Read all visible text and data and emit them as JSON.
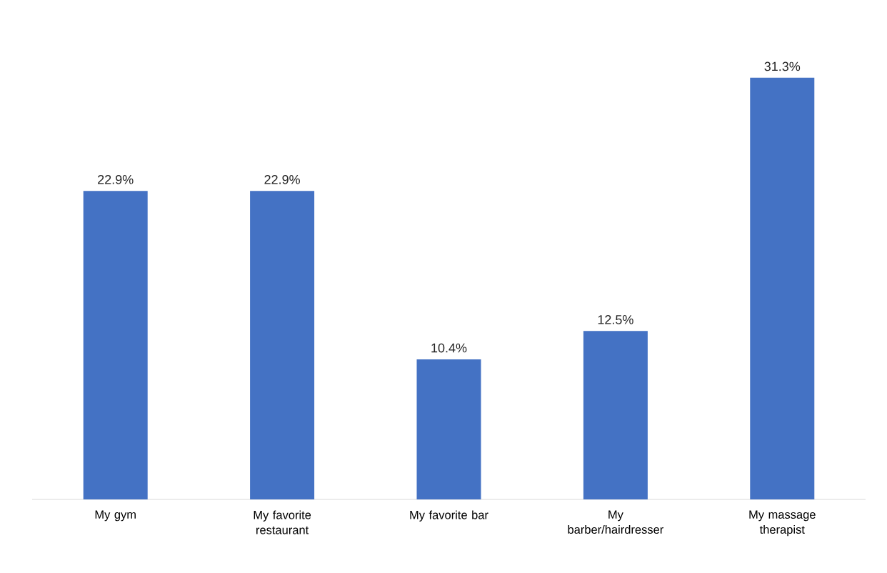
{
  "chart_data": {
    "type": "bar",
    "categories": [
      "My gym",
      "My favorite restaurant",
      "My favorite bar",
      "My barber/hairdresser",
      "My massage therapist"
    ],
    "values": [
      22.9,
      22.9,
      10.4,
      12.5,
      31.3
    ],
    "value_labels": [
      "22.9%",
      "22.9%",
      "10.4%",
      "12.5%",
      "31.3%"
    ],
    "color": "#4472c4"
  }
}
